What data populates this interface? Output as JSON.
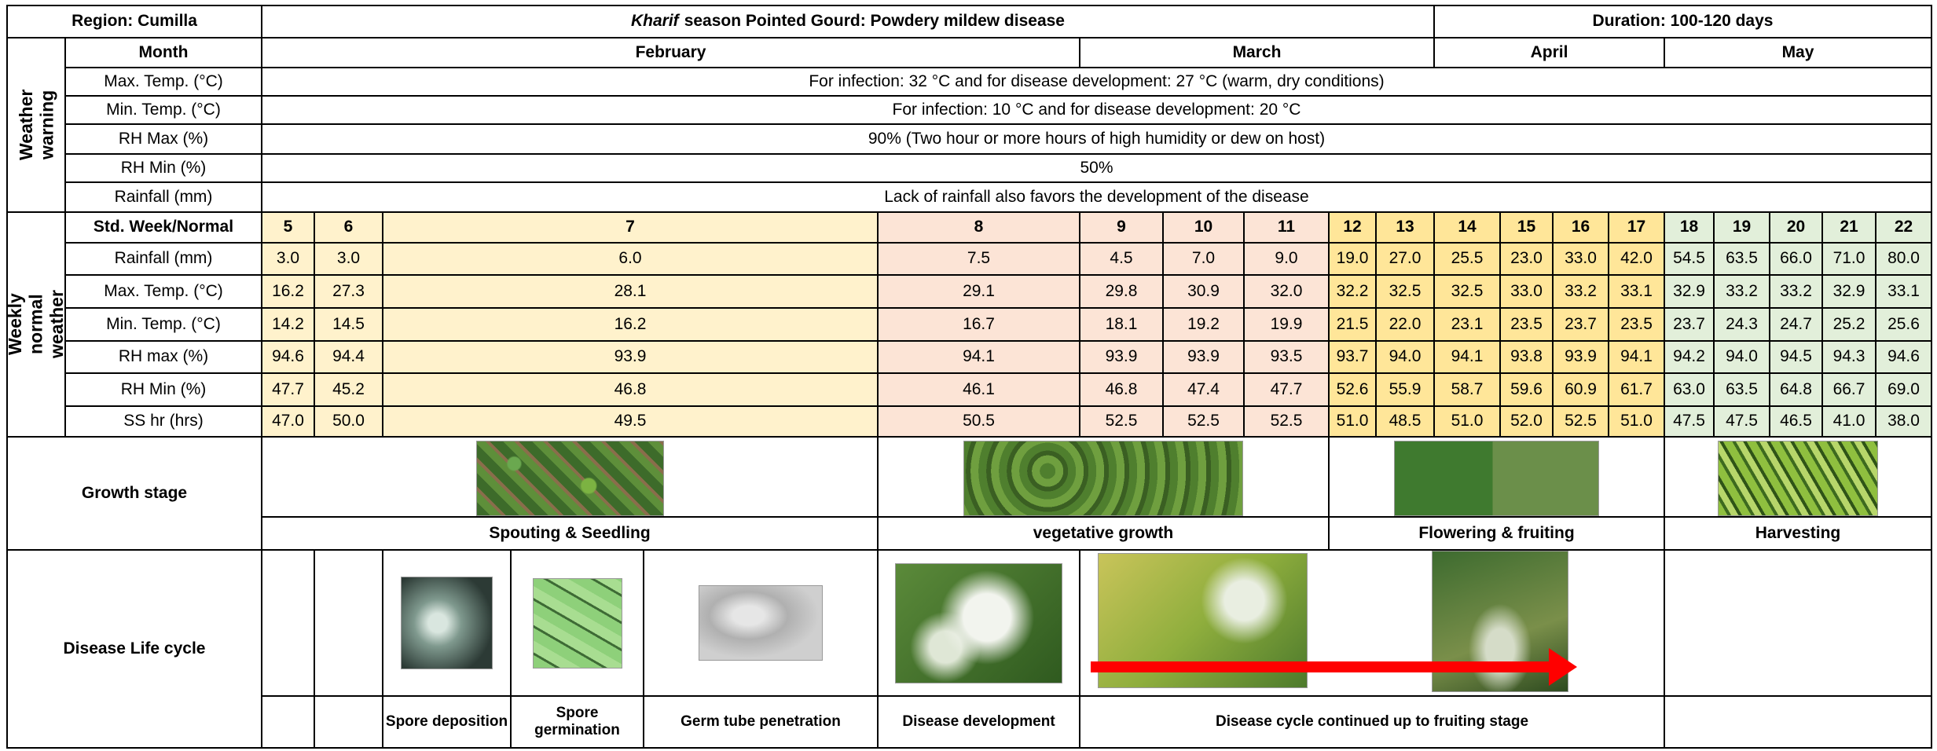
{
  "header": {
    "region": "Region: Cumilla",
    "title": {
      "italic": "Kharif",
      "rest": "season Pointed Gourd: Powdery mildew disease"
    },
    "duration": "Duration: 100-120 days"
  },
  "months": {
    "label": "Month",
    "names": [
      "February",
      "March",
      "April",
      "May"
    ]
  },
  "weather_warning": {
    "label": "Weather warning",
    "rows": [
      {
        "label": "Max. Temp. (°C)",
        "text": "For infection: 32 °C and for disease development: 27 °C (warm, dry conditions)"
      },
      {
        "label": "Min. Temp. (°C)",
        "text": "For infection: 10 °C and for disease development: 20 °C"
      },
      {
        "label": "RH Max (%)",
        "text": "90% (Two hour or more hours of high humidity or dew on host)"
      },
      {
        "label": "RH Min (%)",
        "text": "50%"
      },
      {
        "label": "Rainfall (mm)",
        "text": "Lack of rainfall also favors the development of the disease"
      }
    ]
  },
  "weekly_weather": {
    "label": "Weekly normal weather",
    "header_label": "Std. Week/Normal",
    "weeks": [
      5,
      6,
      7,
      8,
      9,
      10,
      11,
      12,
      13,
      14,
      15,
      16,
      17,
      18,
      19,
      20,
      21,
      22
    ],
    "rows": [
      {
        "label": "Rainfall (mm)",
        "values": [
          "3.0",
          "3.0",
          "6.0",
          "7.5",
          "4.5",
          "7.0",
          "9.0",
          "19.0",
          "27.0",
          "25.5",
          "23.0",
          "33.0",
          "42.0",
          "54.5",
          "63.5",
          "66.0",
          "71.0",
          "80.0"
        ]
      },
      {
        "label": "Max. Temp. (°C)",
        "values": [
          "16.2",
          "27.3",
          "28.1",
          "29.1",
          "29.8",
          "30.9",
          "32.0",
          "32.2",
          "32.5",
          "32.5",
          "33.0",
          "33.2",
          "33.1",
          "32.9",
          "33.2",
          "33.2",
          "32.9",
          "33.1"
        ]
      },
      {
        "label": "Min. Temp. (°C)",
        "values": [
          "14.2",
          "14.5",
          "16.2",
          "16.7",
          "18.1",
          "19.2",
          "19.9",
          "21.5",
          "22.0",
          "23.1",
          "23.5",
          "23.7",
          "23.5",
          "23.7",
          "24.3",
          "24.7",
          "25.2",
          "25.6"
        ]
      },
      {
        "label": "RH max (%)",
        "values": [
          "94.6",
          "94.4",
          "93.9",
          "94.1",
          "93.9",
          "93.9",
          "93.5",
          "93.7",
          "94.0",
          "94.1",
          "93.8",
          "93.9",
          "94.1",
          "94.2",
          "94.0",
          "94.5",
          "94.3",
          "94.6"
        ]
      },
      {
        "label": "RH Min (%)",
        "values": [
          "47.7",
          "45.2",
          "46.8",
          "46.1",
          "46.8",
          "47.4",
          "47.7",
          "52.6",
          "55.9",
          "58.7",
          "59.6",
          "60.9",
          "61.7",
          "63.0",
          "63.5",
          "64.8",
          "66.7",
          "69.0"
        ]
      },
      {
        "label": "SS hr (hrs)",
        "values": [
          "47.0",
          "50.0",
          "49.5",
          "50.5",
          "52.5",
          "52.5",
          "52.5",
          "51.0",
          "48.5",
          "51.0",
          "52.0",
          "52.5",
          "51.0",
          "47.5",
          "47.5",
          "46.5",
          "41.0",
          "38.0"
        ]
      }
    ]
  },
  "growth_stage": {
    "label": "Growth stage",
    "stages": [
      "Spouting & Seedling",
      "vegetative growth",
      "Flowering & fruiting",
      "Harvesting"
    ]
  },
  "disease_life_cycle": {
    "label": "Disease Life cycle",
    "stages": [
      "Spore deposition",
      "Spore germination",
      "Germ tube penetration",
      "Disease development",
      "Disease cycle continued up to fruiting stage"
    ]
  }
}
